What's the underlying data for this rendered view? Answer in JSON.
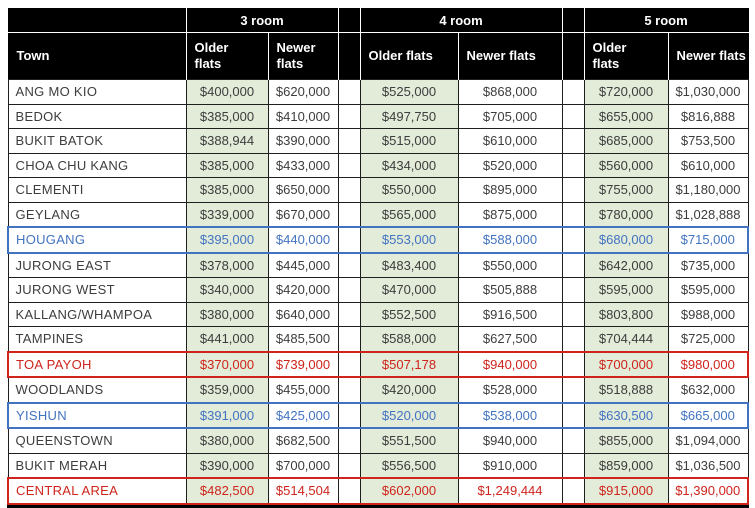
{
  "colors": {
    "header_bg": "#000000",
    "header_text": "#ffffff",
    "older_flats_column_bg": "#e3ebd9",
    "grid_line": "#1f1f1f",
    "data_text": "#3d3d3d",
    "highlight_blue": "#4273c1",
    "highlight_red": "#ce241c"
  },
  "chart_data": {
    "type": "table",
    "town_header": "Town",
    "groups": [
      {
        "label": "3 room",
        "older_label": "Older\nflats",
        "newer_label": "Newer\nflats"
      },
      {
        "label": "4 room",
        "older_label": "Older flats",
        "newer_label": "Newer flats"
      },
      {
        "label": "5 room",
        "older_label": "Older\nflats",
        "newer_label": "Newer flats"
      }
    ],
    "columns": [
      "3 room Older flats",
      "3 room Newer flats",
      "4 room Older flats",
      "4 room Newer flats",
      "5 room Older flats",
      "5 room Newer flats"
    ],
    "rows": [
      {
        "town": "ANG MO KIO",
        "highlight": "none",
        "prices": [
          "$400,000",
          "$620,000",
          "$525,000",
          "$868,000",
          "$720,000",
          "$1,030,000"
        ]
      },
      {
        "town": "BEDOK",
        "highlight": "none",
        "prices": [
          "$385,000",
          "$410,000",
          "$497,750",
          "$705,000",
          "$655,000",
          "$816,888"
        ]
      },
      {
        "town": "BUKIT BATOK",
        "highlight": "none",
        "prices": [
          "$388,944",
          "$390,000",
          "$515,000",
          "$610,000",
          "$685,000",
          "$753,500"
        ]
      },
      {
        "town": "CHOA CHU KANG",
        "highlight": "none",
        "prices": [
          "$385,000",
          "$433,000",
          "$434,000",
          "$520,000",
          "$560,000",
          "$610,000"
        ]
      },
      {
        "town": "CLEMENTI",
        "highlight": "none",
        "prices": [
          "$385,000",
          "$650,000",
          "$550,000",
          "$895,000",
          "$755,000",
          "$1,180,000"
        ]
      },
      {
        "town": "GEYLANG",
        "highlight": "none",
        "prices": [
          "$339,000",
          "$670,000",
          "$565,000",
          "$875,000",
          "$780,000",
          "$1,028,888"
        ]
      },
      {
        "town": "HOUGANG",
        "highlight": "blue",
        "prices": [
          "$395,000",
          "$440,000",
          "$553,000",
          "$588,000",
          "$680,000",
          "$715,000"
        ]
      },
      {
        "town": "JURONG EAST",
        "highlight": "none",
        "prices": [
          "$378,000",
          "$445,000",
          "$483,400",
          "$550,000",
          "$642,000",
          "$735,000"
        ]
      },
      {
        "town": "JURONG WEST",
        "highlight": "none",
        "prices": [
          "$340,000",
          "$420,000",
          "$470,000",
          "$505,888",
          "$595,000",
          "$595,000"
        ]
      },
      {
        "town": "KALLANG/WHAMPOA",
        "highlight": "none",
        "prices": [
          "$380,000",
          "$640,000",
          "$552,500",
          "$916,500",
          "$803,800",
          "$988,000"
        ]
      },
      {
        "town": "TAMPINES",
        "highlight": "none",
        "prices": [
          "$441,000",
          "$485,500",
          "$588,000",
          "$627,500",
          "$704,444",
          "$725,000"
        ]
      },
      {
        "town": "TOA PAYOH",
        "highlight": "red",
        "prices": [
          "$370,000",
          "$739,000",
          "$507,178",
          "$940,000",
          "$700,000",
          "$980,000"
        ]
      },
      {
        "town": "WOODLANDS",
        "highlight": "none",
        "prices": [
          "$359,000",
          "$455,000",
          "$420,000",
          "$528,000",
          "$518,888",
          "$632,000"
        ]
      },
      {
        "town": "YISHUN",
        "highlight": "blue",
        "prices": [
          "$391,000",
          "$425,000",
          "$520,000",
          "$538,000",
          "$630,500",
          "$665,000"
        ]
      },
      {
        "town": "QUEENSTOWN",
        "highlight": "none",
        "prices": [
          "$380,000",
          "$682,500",
          "$551,500",
          "$940,000",
          "$855,000",
          "$1,094,000"
        ]
      },
      {
        "town": "BUKIT MERAH",
        "highlight": "none",
        "prices": [
          "$390,000",
          "$700,000",
          "$556,500",
          "$910,000",
          "$859,000",
          "$1,036,500"
        ]
      },
      {
        "town": "CENTRAL AREA",
        "highlight": "red",
        "prices": [
          "$482,500",
          "$514,504",
          "$602,000",
          "$1,249,444",
          "$915,000",
          "$1,390,000"
        ]
      }
    ]
  }
}
